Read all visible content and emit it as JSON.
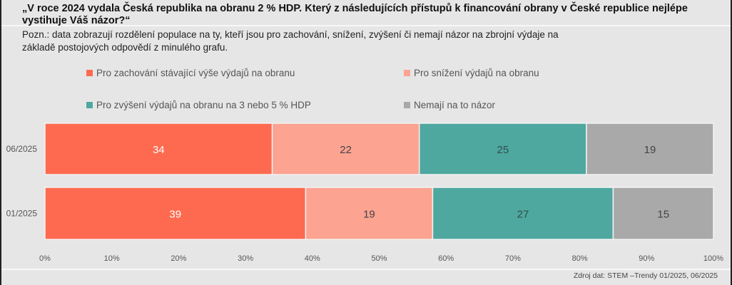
{
  "title": "„V roce 2024 vydala Česká republika na obranu 2 % HDP. Který z následujících přístupů k financování obrany v České republice nejlépe vystihuje Váš názor?“",
  "note": "Pozn.: data zobrazují rozdělení populace na ty, kteří jsou pro zachování, snížení, zvýšení či nemají názor na zbrojní výdaje na základě postojových odpovědí z minulého grafu.",
  "source": "Zdroj dat: STEM –Trendy 01/2025, 06/2025",
  "chart_data": {
    "type": "bar",
    "orientation": "horizontal",
    "stacked": true,
    "title": "„V roce 2024 vydala Česká republika na obranu 2 % HDP. Který z následujících přístupů k financování obrany v České republice nejlépe vystihuje Váš názor?“",
    "categories": [
      "06/2025",
      "01/2025"
    ],
    "series": [
      {
        "name": "Pro zachování stávající výše výdajů na obranu",
        "color": "#fe6a4f",
        "label_color": "#ffffff",
        "values": [
          34,
          39
        ]
      },
      {
        "name": "Pro snížení výdajů na obranu",
        "color": "#fca391",
        "label_color": "#444444",
        "values": [
          22,
          19
        ]
      },
      {
        "name": "Pro zvýšení výdajů na obranu na 3 nebo 5 % HDP",
        "color": "#4fa89f",
        "label_color": "#2f4f4c",
        "values": [
          25,
          27
        ]
      },
      {
        "name": "Nemají na to názor",
        "color": "#a9a9a9",
        "label_color": "#444444",
        "values": [
          19,
          15
        ]
      }
    ],
    "xlim": [
      0,
      100
    ],
    "xticks": [
      "0%",
      "10%",
      "20%",
      "30%",
      "40%",
      "50%",
      "60%",
      "70%",
      "80%",
      "90%",
      "100%"
    ],
    "xlabel": "",
    "ylabel": "",
    "grid": false,
    "legend_position": "top"
  }
}
